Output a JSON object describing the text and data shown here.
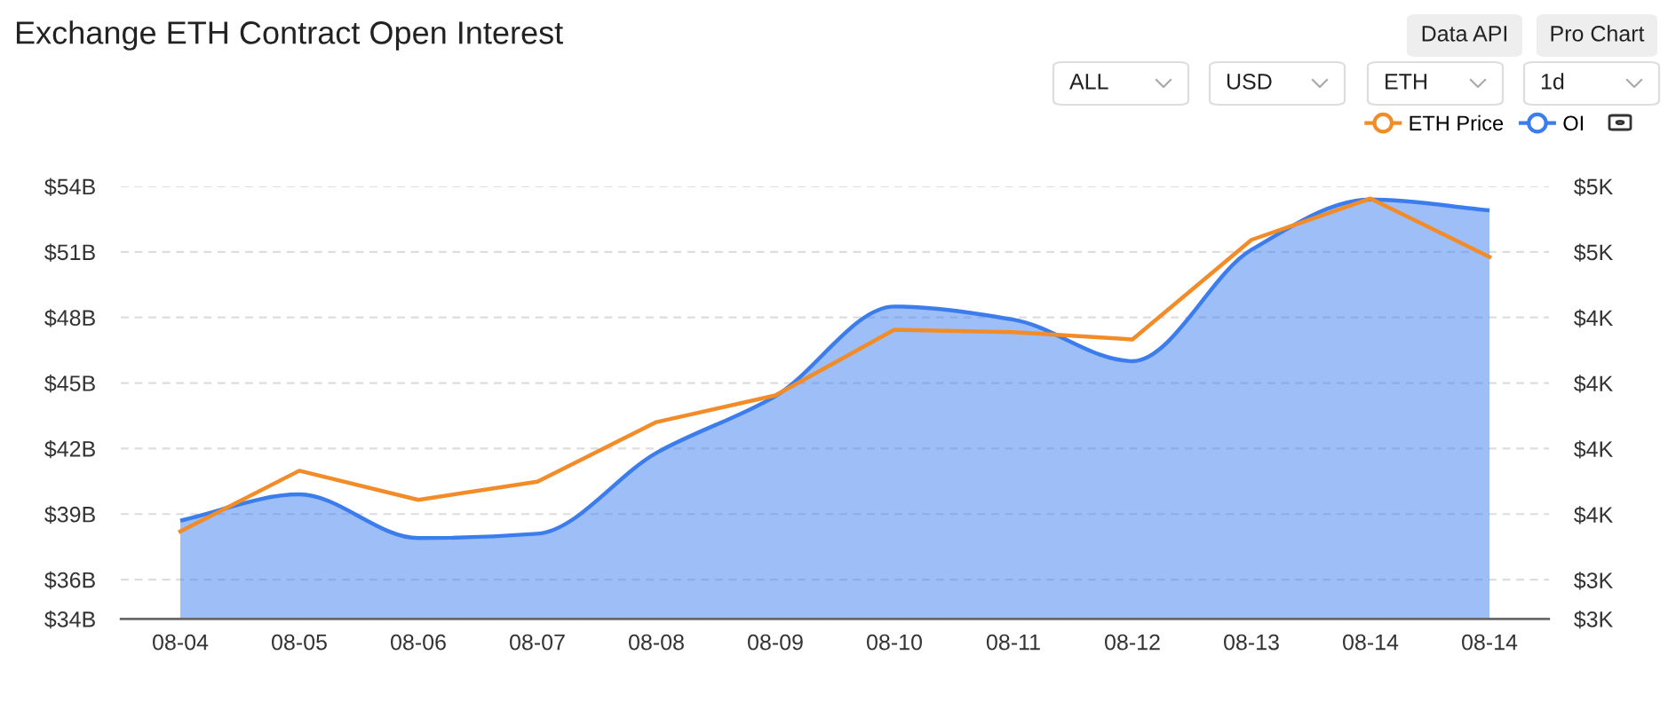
{
  "chart_data": {
    "type": "area",
    "title": "Exchange ETH Contract Open Interest",
    "annotations": [
      "Data API",
      "Pro Chart",
      "ALL",
      "USD",
      "ETH",
      "1d"
    ],
    "categories": [
      "08-04",
      "08-05",
      "08-06",
      "08-07",
      "08-08",
      "08-09",
      "08-10",
      "08-11",
      "08-12",
      "08-13",
      "08-14",
      "08-14"
    ],
    "series": [
      {
        "name": "ETH Price",
        "type": "line",
        "axis": "y2",
        "color": "#f28c28",
        "values": [
          3.48,
          3.73,
          3.61,
          3.685,
          3.93,
          4.04,
          4.31,
          4.3,
          4.27,
          4.68,
          4.85,
          4.61
        ]
      },
      {
        "name": "OI",
        "color": "#3b7ded",
        "values": [
          38.7,
          39.9,
          37.9,
          38.1,
          41.8,
          44.4,
          48.5,
          47.9,
          46.0,
          51.1,
          53.4,
          52.9
        ]
      }
    ],
    "ylim": [
      34.2,
      54
    ],
    "yticks": [
      {
        "value": 34.2,
        "label": "$34B"
      },
      {
        "value": 36,
        "label": "$36B"
      },
      {
        "value": 39,
        "label": "$39B"
      },
      {
        "value": 42,
        "label": "$42B"
      },
      {
        "value": 45,
        "label": "$45B"
      },
      {
        "value": 48,
        "label": "$48B"
      },
      {
        "value": 51,
        "label": "$51B"
      },
      {
        "value": 54,
        "label": "$54B"
      }
    ],
    "y2lim": [
      3.12,
      4.9
    ],
    "y2ticks": [
      {
        "value": 3.12,
        "label": "$3K"
      },
      {
        "value": 3.28,
        "label": "$3K"
      },
      {
        "value": 3.55,
        "label": "$4K"
      },
      {
        "value": 3.82,
        "label": "$4K"
      },
      {
        "value": 4.09,
        "label": "$4K"
      },
      {
        "value": 4.36,
        "label": "$4K"
      },
      {
        "value": 4.63,
        "label": "$5K"
      },
      {
        "value": 4.9,
        "label": "$5K"
      }
    ],
    "grid": "y",
    "legend": "top right"
  }
}
